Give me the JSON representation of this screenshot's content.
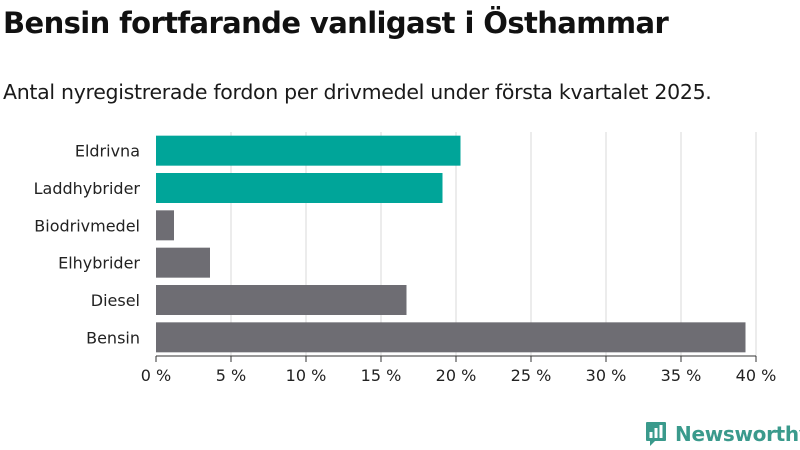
{
  "title": "Bensin fortfarande vanligast i Östhammar",
  "subtitle": "Antal nyregistrerade fordon per drivmedel under första kvartalet 2025.",
  "colors": {
    "highlight": "#00a599",
    "default": "#6e6d73",
    "grid": "#d9d9d9",
    "brand": "#3a9a8c"
  },
  "brand": {
    "name": "Newsworthy",
    "icon": "newsworthy-logo-icon"
  },
  "chart_data": {
    "type": "bar",
    "orientation": "horizontal",
    "categories": [
      "Eldrivna",
      "Laddhybrider",
      "Biodrivmedel",
      "Elhybrider",
      "Diesel",
      "Bensin"
    ],
    "values": [
      20.3,
      19.1,
      1.2,
      3.6,
      16.7,
      39.3
    ],
    "highlighted": [
      true,
      true,
      false,
      false,
      false,
      false
    ],
    "xlim": [
      0,
      40
    ],
    "xticks": [
      0,
      5,
      10,
      15,
      20,
      25,
      30,
      35,
      40
    ],
    "xtick_labels": [
      "0 %",
      "5 %",
      "10 %",
      "15 %",
      "20 %",
      "25 %",
      "30 %",
      "35 %",
      "40 %"
    ],
    "grid": "vertical",
    "title": "Bensin fortfarande vanligast i Östhammar",
    "subtitle": "Antal nyregistrerade fordon per drivmedel under första kvartalet 2025."
  }
}
